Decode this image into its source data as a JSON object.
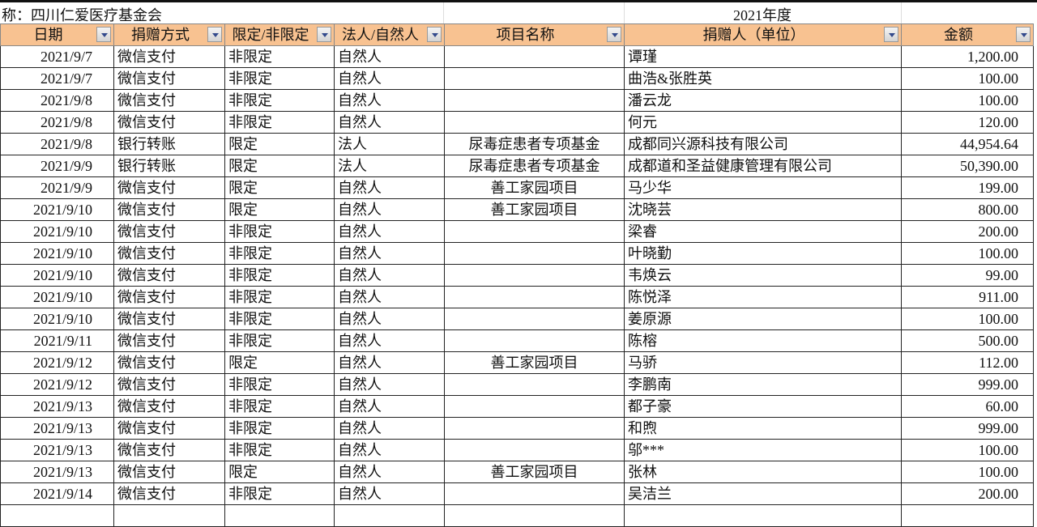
{
  "title": {
    "org": "称：四川仁爱医疗基金会",
    "year": "2021年度"
  },
  "columns": [
    "日期",
    "捐赠方式",
    "限定/非限定",
    "法人/自然人",
    "项目名称",
    "捐赠人（单位）",
    "金额"
  ],
  "colors": {
    "header_bg": "#f8c291",
    "grid": "#222222"
  },
  "rows": [
    [
      "2021/9/7",
      "微信支付",
      "非限定",
      "自然人",
      "",
      "谭瑾",
      "1,200.00"
    ],
    [
      "2021/9/7",
      "微信支付",
      "非限定",
      "自然人",
      "",
      "曲浩&张胜英",
      "100.00"
    ],
    [
      "2021/9/8",
      "微信支付",
      "非限定",
      "自然人",
      "",
      "潘云龙",
      "100.00"
    ],
    [
      "2021/9/8",
      "微信支付",
      "非限定",
      "自然人",
      "",
      "何元",
      "120.00"
    ],
    [
      "2021/9/8",
      "银行转账",
      "限定",
      "法人",
      "尿毒症患者专项基金",
      "成都同兴源科技有限公司",
      "44,954.64"
    ],
    [
      "2021/9/9",
      "银行转账",
      "限定",
      "法人",
      "尿毒症患者专项基金",
      "成都道和圣益健康管理有限公司",
      "50,390.00"
    ],
    [
      "2021/9/9",
      "微信支付",
      "限定",
      "自然人",
      "善工家园项目",
      "马少华",
      "199.00"
    ],
    [
      "2021/9/10",
      "微信支付",
      "限定",
      "自然人",
      "善工家园项目",
      "沈晓芸",
      "800.00"
    ],
    [
      "2021/9/10",
      "微信支付",
      "非限定",
      "自然人",
      "",
      "梁睿",
      "200.00"
    ],
    [
      "2021/9/10",
      "微信支付",
      "非限定",
      "自然人",
      "",
      "叶晓勤",
      "100.00"
    ],
    [
      "2021/9/10",
      "微信支付",
      "非限定",
      "自然人",
      "",
      "韦焕云",
      "99.00"
    ],
    [
      "2021/9/10",
      "微信支付",
      "非限定",
      "自然人",
      "",
      "陈悦泽",
      "911.00"
    ],
    [
      "2021/9/10",
      "微信支付",
      "非限定",
      "自然人",
      "",
      "姜原源",
      "100.00"
    ],
    [
      "2021/9/11",
      "微信支付",
      "非限定",
      "自然人",
      "",
      "陈榕",
      "500.00"
    ],
    [
      "2021/9/12",
      "微信支付",
      "限定",
      "自然人",
      "善工家园项目",
      "马骄",
      "112.00"
    ],
    [
      "2021/9/12",
      "微信支付",
      "非限定",
      "自然人",
      "",
      "李鹏南",
      "999.00"
    ],
    [
      "2021/9/13",
      "微信支付",
      "非限定",
      "自然人",
      "",
      "都子豪",
      "60.00"
    ],
    [
      "2021/9/13",
      "微信支付",
      "非限定",
      "自然人",
      "",
      "和煦",
      "999.00"
    ],
    [
      "2021/9/13",
      "微信支付",
      "非限定",
      "自然人",
      "",
      "邬***",
      "100.00"
    ],
    [
      "2021/9/13",
      "微信支付",
      "限定",
      "自然人",
      "善工家园项目",
      "张林",
      "100.00"
    ],
    [
      "2021/9/14",
      "微信支付",
      "非限定",
      "自然人",
      "",
      "吴洁兰",
      "200.00"
    ]
  ]
}
